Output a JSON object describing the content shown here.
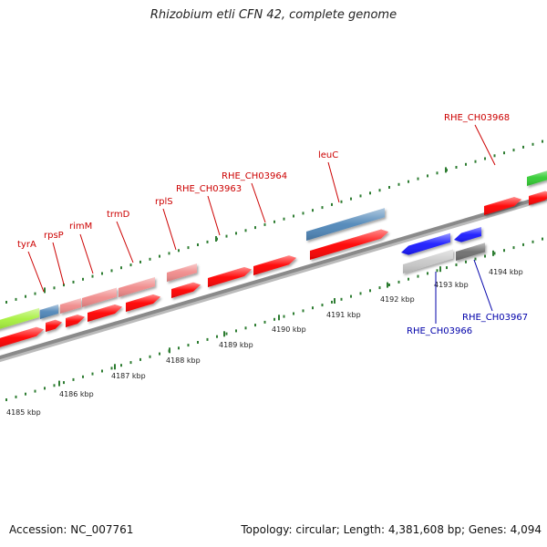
{
  "title": "Rhizobium etli CFN 42, complete genome",
  "footer": {
    "accession": "Accession: NC_007761",
    "summary": "Topology: circular; Length: 4,381,608 bp; Genes: 4,094"
  },
  "colors": {
    "gene_red": "#ff0000",
    "gene_pink": "#f08a8a",
    "gene_steelblue": "#4f86b8",
    "gene_blue": "#1a1aff",
    "gene_gray": "#c8c8c8",
    "gene_darkgray": "#6e6e6e",
    "gene_lime": "#a6f03c",
    "gene_green": "#33cc33",
    "backbone": "#8a8a8a",
    "tick": "#2e7d32",
    "label_top": "#cc0000",
    "label_bottom": "#0000aa"
  },
  "genes_top": [
    "tyrA",
    "rpsP",
    "rimM",
    "trmD",
    "rplS",
    "RHE_CH03963",
    "RHE_CH03964",
    "leuC",
    "RHE_CH03968"
  ],
  "genes_bottom": [
    "RHE_CH03966",
    "RHE_CH03967"
  ],
  "kbp_ticks": [
    "4185 kbp",
    "4186 kbp",
    "4187 kbp",
    "4188 kbp",
    "4189 kbp",
    "4190 kbp",
    "4191 kbp",
    "4192 kbp",
    "4193 kbp",
    "4194 kbp"
  ]
}
